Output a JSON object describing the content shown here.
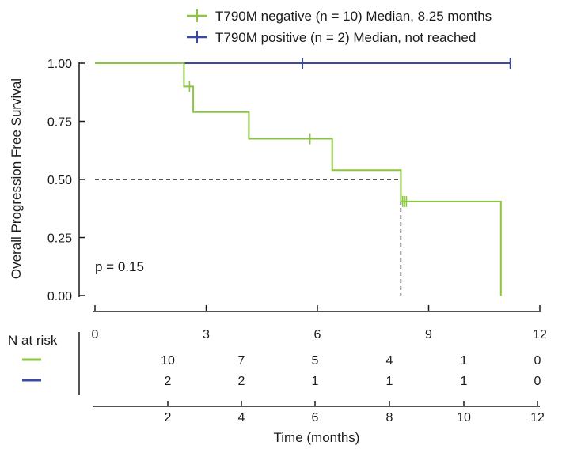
{
  "chart_data": {
    "type": "line",
    "subtype": "kaplan-meier",
    "ylabel": "Overall Progression Free Survival",
    "xlabel": "Time (months)",
    "x_ticks": [
      0,
      3,
      6,
      9,
      12
    ],
    "y_ticks": [
      "1.00",
      "0.75",
      "0.50",
      "0.25",
      "0.00"
    ],
    "y_tick_values": [
      1.0,
      0.75,
      0.5,
      0.25,
      0.0
    ],
    "xlim": [
      0,
      12
    ],
    "ylim": [
      0,
      1
    ],
    "annotation": "p = 0.15",
    "median_line": {
      "y": 0.5,
      "x": 8.25
    },
    "legend_position": "top-right",
    "series": [
      {
        "name": "T790M negative (n = 10)  Median, 8.25 months",
        "color": "#8cc63f",
        "steps": [
          [
            0,
            1.0
          ],
          [
            2.4,
            1.0
          ],
          [
            2.4,
            0.9
          ],
          [
            2.65,
            0.9
          ],
          [
            2.65,
            0.79
          ],
          [
            4.15,
            0.79
          ],
          [
            4.15,
            0.675
          ],
          [
            6.4,
            0.675
          ],
          [
            6.4,
            0.54
          ],
          [
            8.25,
            0.54
          ],
          [
            8.25,
            0.405
          ],
          [
            10.95,
            0.405
          ],
          [
            10.95,
            0.0
          ]
        ],
        "censors": [
          [
            2.55,
            0.9
          ],
          [
            5.8,
            0.675
          ],
          [
            8.3,
            0.405
          ],
          [
            8.35,
            0.405
          ],
          [
            8.4,
            0.405
          ]
        ]
      },
      {
        "name": "T790M positive (n = 2)  Median, not reached",
        "color": "#3b4aa0",
        "steps": [
          [
            0,
            1.0
          ],
          [
            11.2,
            1.0
          ]
        ],
        "censors": [
          [
            5.6,
            1.0
          ],
          [
            11.2,
            1.0
          ]
        ]
      }
    ],
    "risk_table": {
      "title": "N at risk",
      "columns": [
        "10",
        "7",
        "5",
        "4",
        "1",
        "0"
      ],
      "rows": [
        {
          "color": "#8cc63f",
          "values": [
            "10",
            "7",
            "5",
            "4",
            "1",
            "0"
          ]
        },
        {
          "color": "#3b4aa0",
          "values": [
            "2",
            "2",
            "1",
            "1",
            "1",
            "0"
          ]
        }
      ]
    },
    "bottom_axis_ticks": [
      "2",
      "4",
      "6",
      "8",
      "10",
      "12"
    ]
  }
}
